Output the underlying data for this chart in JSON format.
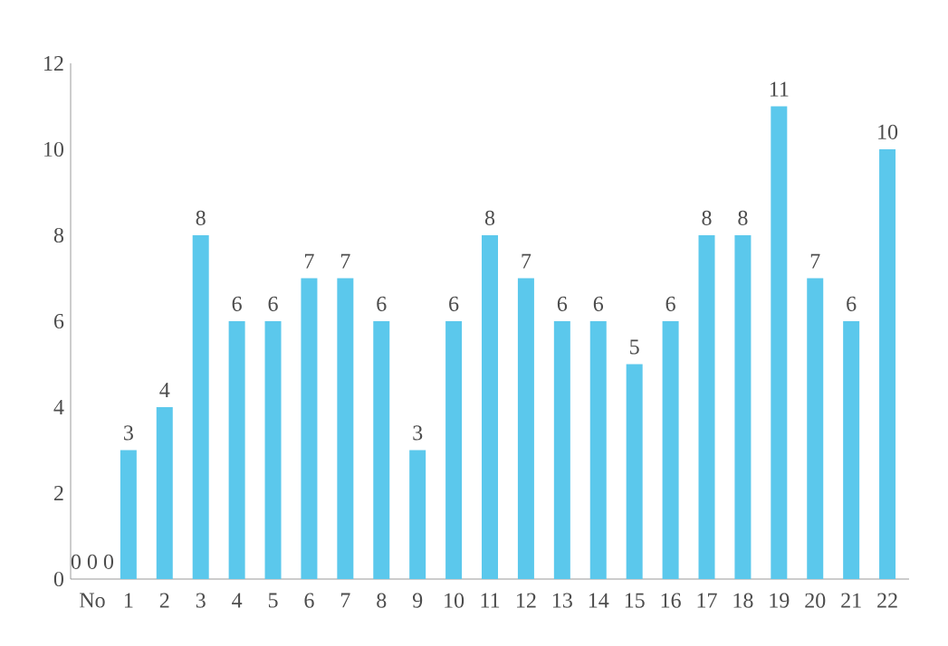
{
  "chart_data": {
    "type": "bar",
    "categories": [
      "No",
      "1",
      "2",
      "3",
      "4",
      "5",
      "6",
      "7",
      "8",
      "9",
      "10",
      "11",
      "12",
      "13",
      "14",
      "15",
      "16",
      "17",
      "18",
      "19",
      "20",
      "21",
      "22"
    ],
    "values": [
      0,
      3,
      4,
      8,
      6,
      6,
      7,
      7,
      6,
      3,
      6,
      8,
      7,
      6,
      6,
      5,
      6,
      8,
      8,
      11,
      7,
      6,
      10
    ],
    "value_labels": [
      "0 0 0",
      "3",
      "4",
      "8",
      "6",
      "6",
      "7",
      "7",
      "6",
      "3",
      "6",
      "8",
      "7",
      "6",
      "6",
      "5",
      "6",
      "8",
      "8",
      "11",
      "7",
      "6",
      "10"
    ],
    "color": "#5bc8ec",
    "ylim": [
      0,
      12
    ],
    "yticks": [
      0,
      2,
      4,
      6,
      8,
      10,
      12
    ],
    "grid": false
  }
}
